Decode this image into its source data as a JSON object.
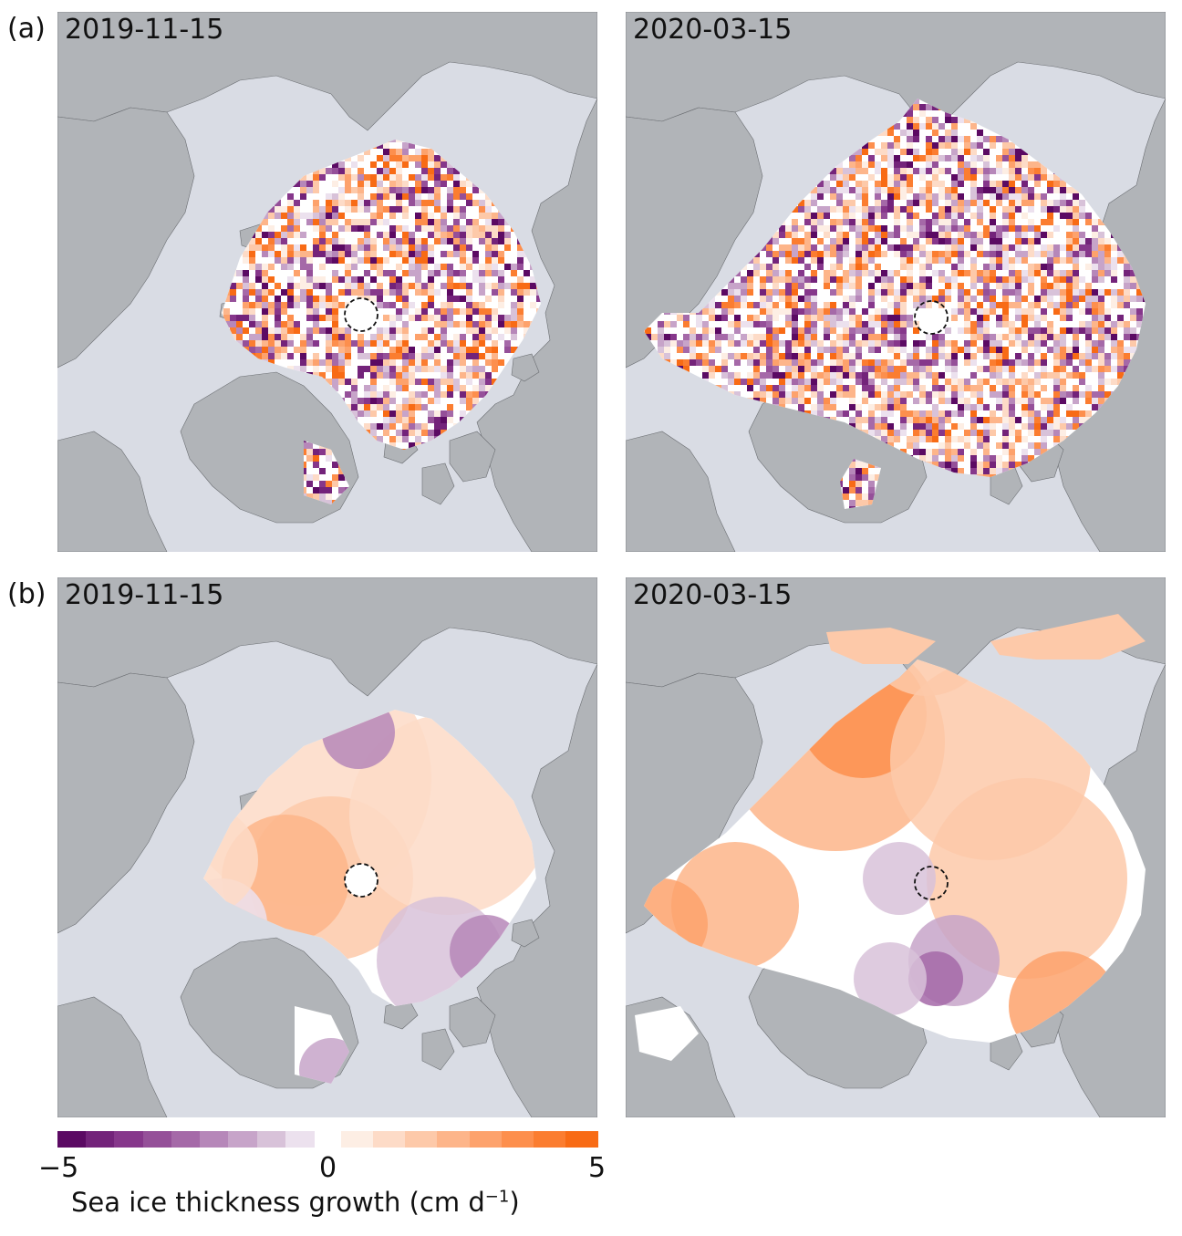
{
  "rows": [
    {
      "label": "(a)",
      "panels": [
        {
          "date": "2019-11-15"
        },
        {
          "date": "2020-03-15"
        }
      ]
    },
    {
      "label": "(b)",
      "panels": [
        {
          "date": "2019-11-15"
        },
        {
          "date": "2020-03-15"
        }
      ]
    }
  ],
  "colorbar": {
    "title_main": "Sea ice thickness growth (cm d",
    "title_sup": "−1",
    "title_end": ")",
    "ticks": [
      "−5",
      "0",
      "5"
    ],
    "min": -5,
    "max": 5,
    "neg_colors": [
      "#5b0a63",
      "#73237a",
      "#86378b",
      "#955099",
      "#a569a8",
      "#b687b9",
      "#c7a4c9",
      "#d8c2d9",
      "#ece1ee"
    ],
    "pos_colors": [
      "#fdeee4",
      "#fddbc7",
      "#fdc9a9",
      "#fdb58a",
      "#fda26c",
      "#fd8f4d",
      "#fb7d30",
      "#f86b15"
    ]
  },
  "colors": {
    "land": "#b1b4b8",
    "ocean": "#d9dce4",
    "ice_zero": "#ffffff",
    "pole_marker": "#111111"
  }
}
